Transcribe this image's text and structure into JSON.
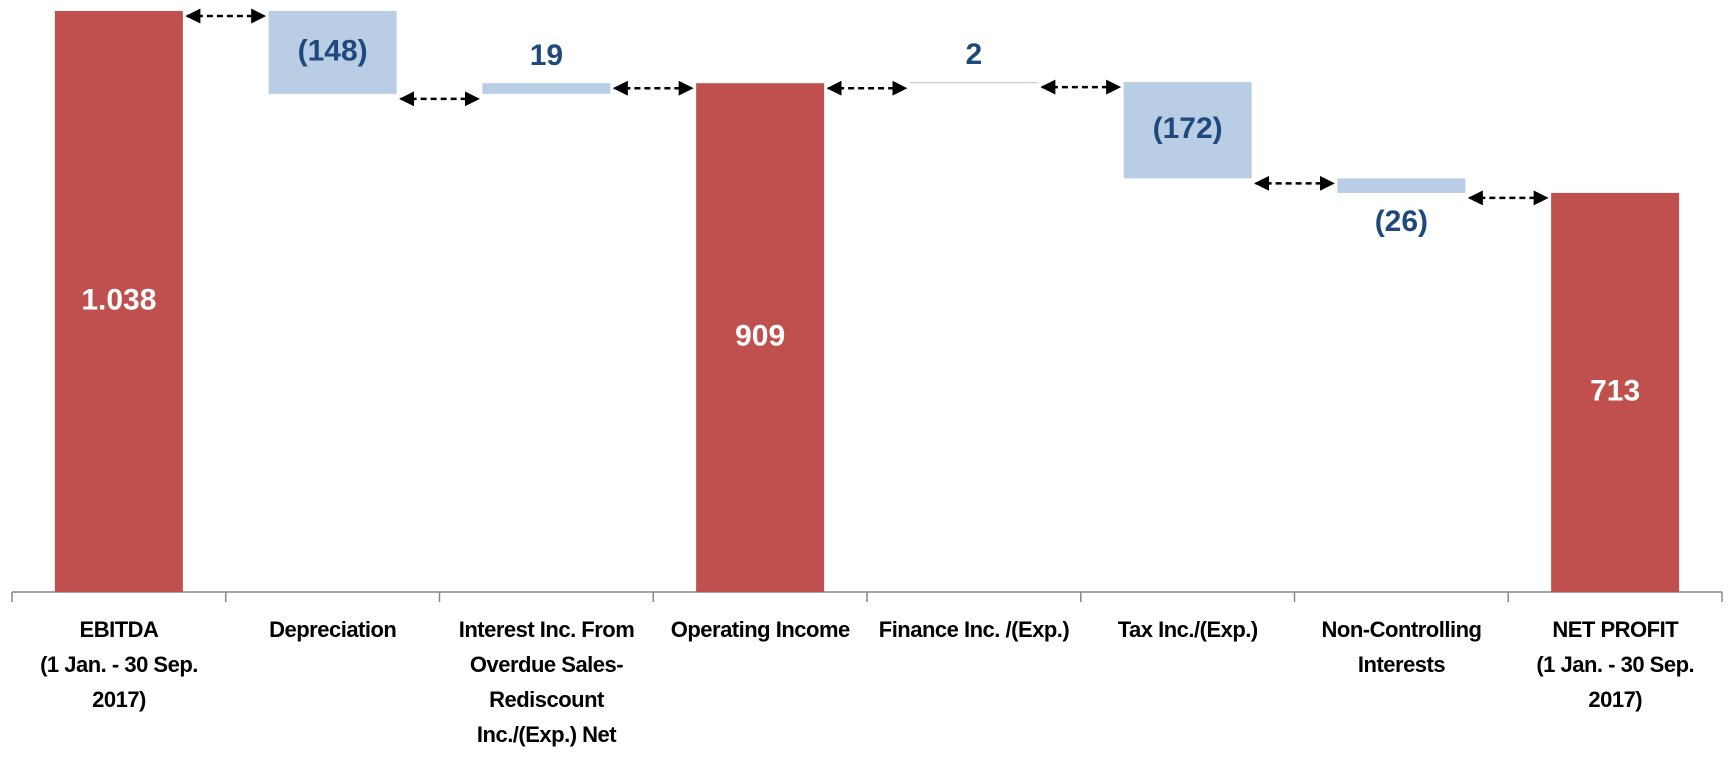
{
  "chart_data": {
    "type": "waterfall",
    "categories": [
      "EBITDA\n(1 Jan. - 30 Sep.\n2017)",
      "Depreciation",
      "Interest Inc. From\nOverdue Sales-\nRediscount\nInc./(Exp.) Net",
      "Operating Income",
      "Finance Inc. /(Exp.)",
      "Tax Inc./(Exp.)",
      "Non-Controlling\nInterests",
      "NET PROFIT\n(1 Jan. - 30 Sep.\n2017)"
    ],
    "values": [
      1038,
      -148,
      19,
      909,
      2,
      -172,
      -26,
      713
    ],
    "value_labels": [
      "1.038",
      "(148)",
      "19",
      "909",
      "2",
      "(172)",
      "(26)",
      "713"
    ],
    "totals": [
      true,
      false,
      false,
      true,
      false,
      false,
      false,
      true
    ],
    "total_color": "#c0504d",
    "delta_color": "#b9cde5",
    "ylim": [
      0,
      1038
    ]
  }
}
